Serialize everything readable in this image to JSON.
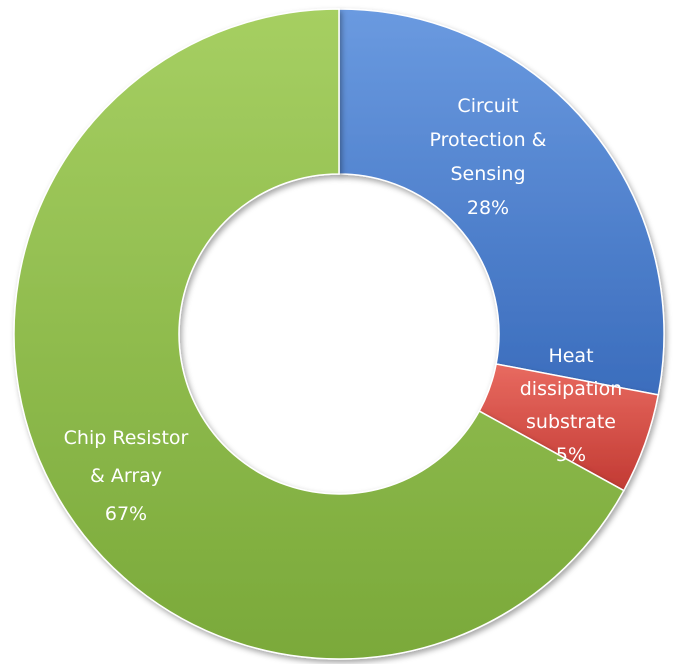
{
  "chart_data": {
    "type": "pie",
    "donut": true,
    "start_angle_deg": 0,
    "direction": "clockwise",
    "slices": [
      {
        "label_lines": [
          "Circuit",
          "Protection &",
          "Sensing"
        ],
        "value_label": "28%",
        "value": 28,
        "color": "#4a7fcf"
      },
      {
        "label_lines": [
          "Heat",
          "dissipation",
          "substrate"
        ],
        "value_label": "5%",
        "value": 5,
        "color": "#d94a42"
      },
      {
        "label_lines": [
          "Chip Resistor",
          "& Array"
        ],
        "value_label": "67%",
        "value": 67,
        "color": "#92c04a"
      }
    ],
    "legend": "none",
    "data_labels": "inside slices"
  }
}
